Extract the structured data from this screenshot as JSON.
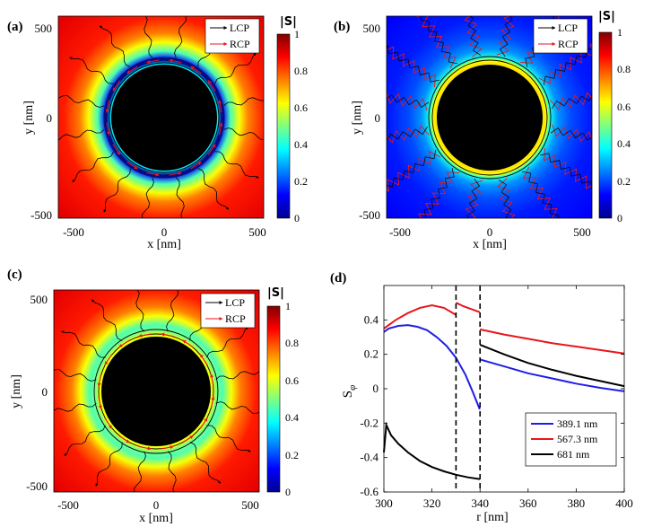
{
  "figure": {
    "colors": {
      "black_circle": "#000000",
      "lcp": "#000000",
      "rcp": "#e8161b",
      "ring_line": "#000000"
    },
    "colormap_name": "jet"
  },
  "panels": [
    {
      "id": "a",
      "label": "(a)",
      "xlabel": "x [nm]",
      "ylabel": "y [nm]",
      "xticks": [
        "-500",
        "0",
        "500"
      ],
      "yticks": [
        "500",
        "0",
        "-500"
      ],
      "legend": {
        "lcp": "LCP",
        "rcp": "RCP"
      },
      "colorbar": {
        "title": "|S|",
        "ticks": [
          "1",
          "0.8",
          "0.6",
          "0.4",
          "0.2",
          "0"
        ]
      },
      "field": {
        "inner_radius_nm": 300,
        "profile": "a"
      }
    },
    {
      "id": "b",
      "label": "(b)",
      "xlabel": "x [nm]",
      "ylabel": "y [nm]",
      "xticks": [
        "-500",
        "0",
        "500"
      ],
      "yticks": [
        "500",
        "0",
        "-500"
      ],
      "legend": {
        "lcp": "LCP",
        "rcp": "RCP"
      },
      "colorbar": {
        "title": "|S|",
        "ticks": [
          "1",
          "0.8",
          "0.6",
          "0.4",
          "0.2",
          "0"
        ]
      },
      "field": {
        "inner_radius_nm": 300,
        "profile": "b"
      }
    },
    {
      "id": "c",
      "label": "(c)",
      "xlabel": "x [nm]",
      "ylabel": "y [nm]",
      "xticks": [
        "-500",
        "0",
        "500"
      ],
      "yticks": [
        "500",
        "0",
        "-500"
      ],
      "legend": {
        "lcp": "LCP",
        "rcp": "RCP"
      },
      "colorbar": {
        "title": "|S|",
        "ticks": [
          "1",
          "0.8",
          "0.6",
          "0.4",
          "0.2",
          "0"
        ]
      },
      "field": {
        "inner_radius_nm": 300,
        "profile": "c"
      }
    }
  ],
  "chart_data": {
    "type": "line",
    "panel_label": "(d)",
    "xlabel": "r [nm]",
    "ylabel": "S",
    "ylabel_sub": "φ",
    "xlim": [
      300,
      400
    ],
    "ylim": [
      -0.6,
      0.6
    ],
    "xticks": [
      "300",
      "320",
      "340",
      "360",
      "380",
      "400"
    ],
    "yticks": [
      "0.4",
      "0.2",
      "0",
      "-0.2",
      "-0.4",
      "-0.6"
    ],
    "vlines": [
      330,
      340
    ],
    "series": [
      {
        "name": "389.1 nm",
        "color": "#1f1fe6",
        "segments": [
          {
            "x": [
              300,
              302,
              306,
              310,
              314,
              318,
              322,
              326,
              330,
              334,
              337,
              339.9
            ],
            "y": [
              0.33,
              0.35,
              0.365,
              0.37,
              0.36,
              0.34,
              0.3,
              0.25,
              0.18,
              0.08,
              -0.02,
              -0.12
            ]
          },
          {
            "x": [
              340,
              350,
              360,
              370,
              380,
              390,
              400
            ],
            "y": [
              0.17,
              0.13,
              0.09,
              0.06,
              0.03,
              0.005,
              -0.015
            ]
          }
        ]
      },
      {
        "name": "567.3 nm",
        "color": "#e8161b",
        "segments": [
          {
            "x": [
              300,
              305,
              310,
              315,
              320,
              325,
              329.9
            ],
            "y": [
              0.35,
              0.4,
              0.44,
              0.47,
              0.485,
              0.47,
              0.43
            ]
          },
          {
            "x": [
              330,
              333,
              336,
              339.9
            ],
            "y": [
              0.5,
              0.48,
              0.465,
              0.445
            ]
          },
          {
            "x": [
              340,
              350,
              360,
              370,
              380,
              390,
              400
            ],
            "y": [
              0.345,
              0.315,
              0.29,
              0.265,
              0.245,
              0.225,
              0.205
            ]
          }
        ]
      },
      {
        "name": "681 nm",
        "color": "#000000",
        "segments": [
          {
            "x": [
              300,
              301,
              303,
              306,
              310,
              315,
              320,
              325,
              330,
              335,
              339.9
            ],
            "y": [
              -0.37,
              -0.21,
              -0.27,
              -0.32,
              -0.37,
              -0.42,
              -0.455,
              -0.48,
              -0.5,
              -0.515,
              -0.525
            ]
          },
          {
            "x": [
              340,
              350,
              360,
              370,
              380,
              390,
              400
            ],
            "y": [
              0.255,
              0.2,
              0.15,
              0.11,
              0.075,
              0.045,
              0.015
            ]
          }
        ]
      }
    ]
  }
}
